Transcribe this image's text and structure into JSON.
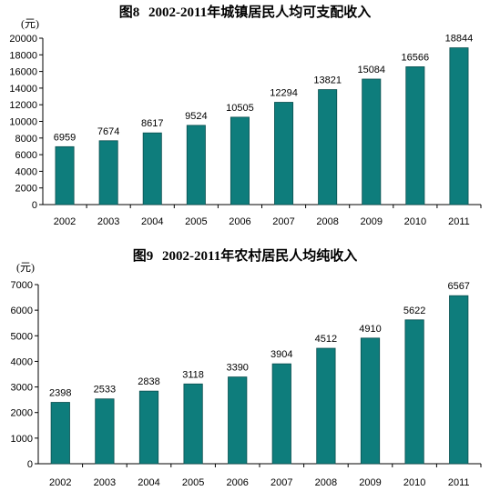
{
  "charts": [
    {
      "title_fig": "图8",
      "title_text": "2002-2011年城镇居民人均可支配收入"
    },
    {
      "title_fig": "图9",
      "title_text": "2002-2011年农村居民人均纯收入"
    }
  ],
  "chart_data": [
    {
      "type": "bar",
      "title": "图8 2002-2011年城镇居民人均可支配收入",
      "ylabel": "(元)",
      "xlabel": "",
      "categories": [
        "2002",
        "2003",
        "2004",
        "2005",
        "2006",
        "2007",
        "2008",
        "2009",
        "2010",
        "2011"
      ],
      "values": [
        6959,
        7674,
        8617,
        9524,
        10505,
        12294,
        13821,
        15084,
        16566,
        18844
      ],
      "ylim": [
        0,
        20000
      ],
      "yticks": [
        0,
        2000,
        4000,
        6000,
        8000,
        10000,
        12000,
        14000,
        16000,
        18000,
        20000
      ],
      "bar_color": "#0e7d7c",
      "grid": false
    },
    {
      "type": "bar",
      "title": "图9 2002-2011年农村居民人均纯收入",
      "ylabel": "(元)",
      "xlabel": "",
      "categories": [
        "2002",
        "2003",
        "2004",
        "2005",
        "2006",
        "2007",
        "2008",
        "2009",
        "2010",
        "2011"
      ],
      "values": [
        2398,
        2533,
        2838,
        3118,
        3390,
        3904,
        4512,
        4910,
        5622,
        6567
      ],
      "ylim": [
        0,
        7000
      ],
      "yticks": [
        0,
        1000,
        2000,
        3000,
        4000,
        5000,
        6000,
        7000
      ],
      "bar_color": "#0e7d7c",
      "grid": false
    }
  ]
}
